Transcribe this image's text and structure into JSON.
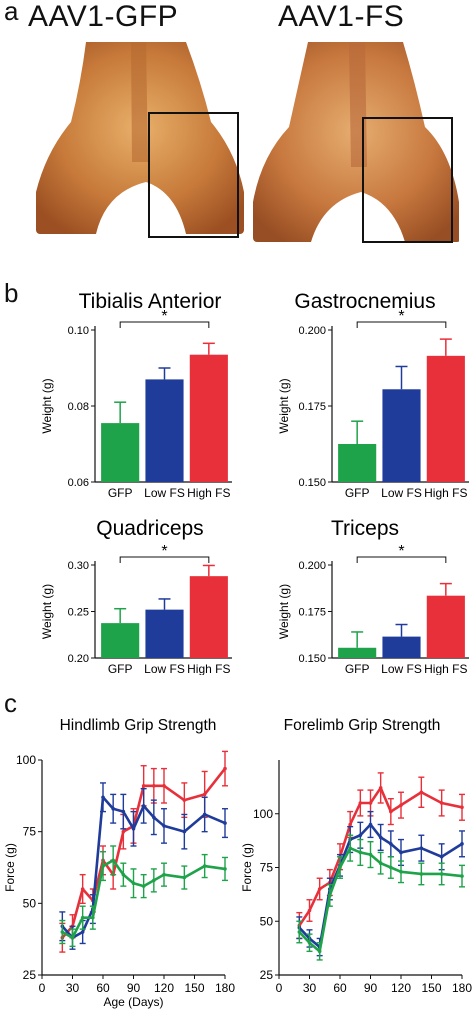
{
  "panels": {
    "a": {
      "label": "a",
      "photos": [
        {
          "title": "AAV1-GFP"
        },
        {
          "title": "AAV1-FS"
        }
      ]
    },
    "b": {
      "label": "b"
    },
    "c": {
      "label": "c"
    }
  },
  "colors": {
    "gfp": "#1fa34a",
    "low_fs": "#1f3c9a",
    "high_fs": "#e8303a"
  },
  "chart_data": [
    {
      "type": "bar",
      "title": "Tibialis Anterior",
      "ylabel": "Weight (g)",
      "categories": [
        "GFP",
        "Low FS",
        "High FS"
      ],
      "values": [
        0.0755,
        0.087,
        0.0935
      ],
      "errors": [
        0.0055,
        0.003,
        0.003
      ],
      "ylim": [
        0.06,
        0.1
      ],
      "yticks": [
        "0.06",
        "0.08",
        "0.10"
      ],
      "ytick_values": [
        0.06,
        0.08,
        0.1
      ],
      "significance": {
        "from": 0,
        "to": 2,
        "label": "*"
      }
    },
    {
      "type": "bar",
      "title": "Gastrocnemius",
      "ylabel": "Weight (g)",
      "categories": [
        "GFP",
        "Low FS",
        "High FS"
      ],
      "values": [
        0.1625,
        0.1805,
        0.1915
      ],
      "errors": [
        0.0075,
        0.0075,
        0.0055
      ],
      "ylim": [
        0.15,
        0.2
      ],
      "yticks": [
        "0.150",
        "0.175",
        "0.200"
      ],
      "ytick_values": [
        0.15,
        0.175,
        0.2
      ],
      "significance": {
        "from": 0,
        "to": 2,
        "label": "*"
      }
    },
    {
      "type": "bar",
      "title": "Quadriceps",
      "ylabel": "Weight (g)",
      "categories": [
        "GFP",
        "Low FS",
        "High FS"
      ],
      "values": [
        0.2375,
        0.252,
        0.288
      ],
      "errors": [
        0.0155,
        0.0115,
        0.0115
      ],
      "ylim": [
        0.2,
        0.3
      ],
      "yticks": [
        "0.20",
        "0.25",
        "0.30"
      ],
      "ytick_values": [
        0.2,
        0.25,
        0.3
      ],
      "significance": {
        "from": 0,
        "to": 2,
        "label": "*"
      }
    },
    {
      "type": "bar",
      "title": "Triceps",
      "ylabel": "Weight (g)",
      "categories": [
        "GFP",
        "Low FS",
        "High FS"
      ],
      "values": [
        0.1555,
        0.1615,
        0.1835
      ],
      "errors": [
        0.0085,
        0.0065,
        0.0065
      ],
      "ylim": [
        0.15,
        0.2
      ],
      "yticks": [
        "0.150",
        "0.175",
        "0.200"
      ],
      "ytick_values": [
        0.15,
        0.175,
        0.2
      ],
      "significance": {
        "from": 0,
        "to": 2,
        "label": "*"
      }
    },
    {
      "type": "line",
      "title": "Hindlimb Grip Strength",
      "xlabel": "Age (Days)",
      "ylabel": "Force (g)",
      "xlim": [
        0,
        180
      ],
      "ylim": [
        25,
        100
      ],
      "xticks": [
        0,
        30,
        60,
        90,
        120,
        150,
        180
      ],
      "yticks": [
        25,
        50,
        75,
        100
      ],
      "series": [
        {
          "color": "#e8303a",
          "x": [
            20,
            30,
            40,
            50,
            60,
            70,
            80,
            90,
            100,
            110,
            120,
            140,
            160,
            180
          ],
          "y": [
            38,
            42,
            55,
            51,
            65,
            60,
            75,
            77,
            91,
            91,
            91,
            86,
            88,
            97
          ],
          "err": [
            5,
            4,
            5,
            4,
            5,
            5,
            6,
            6,
            7,
            6,
            6,
            6,
            8,
            6
          ]
        },
        {
          "color": "#1f3c9a",
          "x": [
            20,
            30,
            40,
            50,
            60,
            70,
            80,
            90,
            100,
            110,
            120,
            140,
            160,
            180
          ],
          "y": [
            42,
            38,
            40,
            48,
            87,
            83,
            82,
            76,
            84,
            80,
            77,
            75,
            81,
            78
          ],
          "err": [
            5,
            4,
            4,
            5,
            5,
            5,
            6,
            6,
            6,
            6,
            6,
            6,
            6,
            5
          ]
        },
        {
          "color": "#1fa34a",
          "x": [
            20,
            30,
            40,
            50,
            60,
            70,
            80,
            90,
            100,
            110,
            120,
            140,
            160,
            180
          ],
          "y": [
            40,
            38,
            45,
            45,
            63,
            65,
            60,
            57,
            56,
            58,
            60,
            59,
            63,
            62
          ],
          "err": [
            4,
            3,
            4,
            4,
            5,
            5,
            4,
            5,
            4,
            4,
            4,
            4,
            4,
            4
          ]
        }
      ]
    },
    {
      "type": "line",
      "title": "Forelimb Grip Strength",
      "xlabel": "",
      "ylabel": "Force (g)",
      "xlim": [
        0,
        180
      ],
      "ylim": [
        25,
        125
      ],
      "xticks": [
        0,
        30,
        60,
        90,
        120,
        150,
        180
      ],
      "yticks": [
        25,
        50,
        75,
        100
      ],
      "series": [
        {
          "color": "#e8303a",
          "x": [
            20,
            30,
            40,
            50,
            60,
            70,
            80,
            90,
            100,
            110,
            120,
            140,
            160,
            180
          ],
          "y": [
            48,
            55,
            65,
            68,
            80,
            95,
            105,
            105,
            112,
            101,
            104,
            110,
            105,
            103
          ],
          "err": [
            6,
            5,
            5,
            6,
            6,
            6,
            6,
            6,
            7,
            6,
            6,
            7,
            6,
            6
          ]
        },
        {
          "color": "#1f3c9a",
          "x": [
            20,
            30,
            40,
            50,
            60,
            70,
            80,
            90,
            100,
            110,
            120,
            140,
            160,
            180
          ],
          "y": [
            47,
            42,
            38,
            65,
            76,
            88,
            90,
            95,
            89,
            86,
            82,
            84,
            80,
            86
          ],
          "err": [
            5,
            4,
            4,
            5,
            5,
            6,
            6,
            6,
            6,
            6,
            6,
            6,
            6,
            6
          ]
        },
        {
          "color": "#1fa34a",
          "x": [
            20,
            30,
            40,
            50,
            60,
            70,
            80,
            90,
            100,
            110,
            120,
            140,
            160,
            180
          ],
          "y": [
            45,
            40,
            36,
            62,
            75,
            84,
            82,
            81,
            77,
            75,
            73,
            72,
            72,
            71
          ],
          "err": [
            5,
            4,
            4,
            5,
            5,
            6,
            6,
            6,
            5,
            5,
            5,
            5,
            5,
            5
          ]
        }
      ]
    }
  ]
}
